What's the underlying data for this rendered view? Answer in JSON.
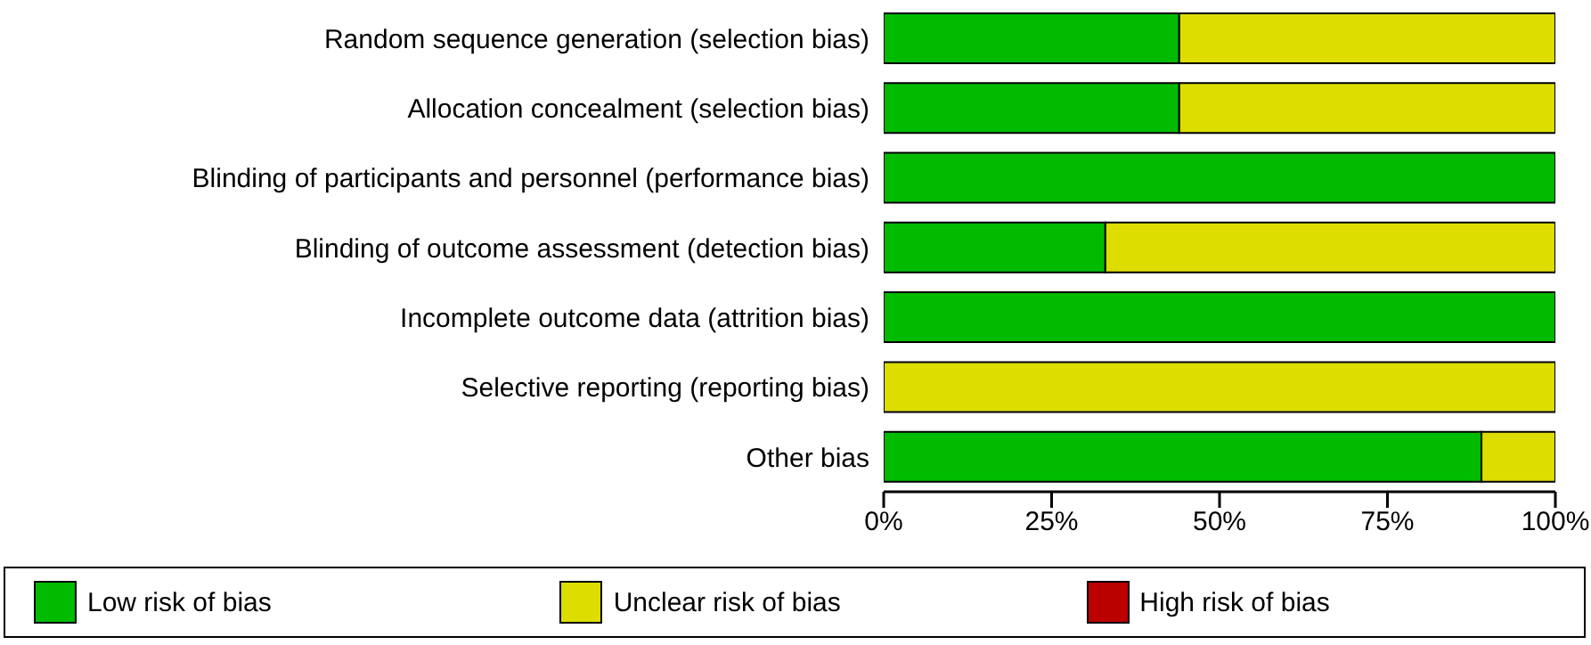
{
  "chart_data": {
    "type": "bar",
    "orientation": "horizontal",
    "stacked": true,
    "categories": [
      "Random sequence generation (selection bias)",
      "Allocation concealment (selection bias)",
      "Blinding of participants and personnel (performance bias)",
      "Blinding of outcome assessment (detection bias)",
      "Incomplete outcome data (attrition bias)",
      "Selective reporting (reporting bias)",
      "Other bias"
    ],
    "series": [
      {
        "name": "Low risk of bias",
        "color": "#00bb00",
        "values": [
          44,
          44,
          100,
          33,
          100,
          0,
          89
        ]
      },
      {
        "name": "Unclear risk of bias",
        "color": "#dddd00",
        "values": [
          56,
          56,
          0,
          67,
          0,
          100,
          11
        ]
      },
      {
        "name": "High risk of bias",
        "color": "#bb0000",
        "values": [
          0,
          0,
          0,
          0,
          0,
          0,
          0
        ]
      }
    ],
    "xlim": [
      0,
      100
    ],
    "xticks": [
      {
        "value": 0,
        "label": "0%"
      },
      {
        "value": 25,
        "label": "25%"
      },
      {
        "value": 50,
        "label": "50%"
      },
      {
        "value": 75,
        "label": "75%"
      },
      {
        "value": 100,
        "label": "100%"
      }
    ],
    "grid": false,
    "legend": "bottom"
  }
}
